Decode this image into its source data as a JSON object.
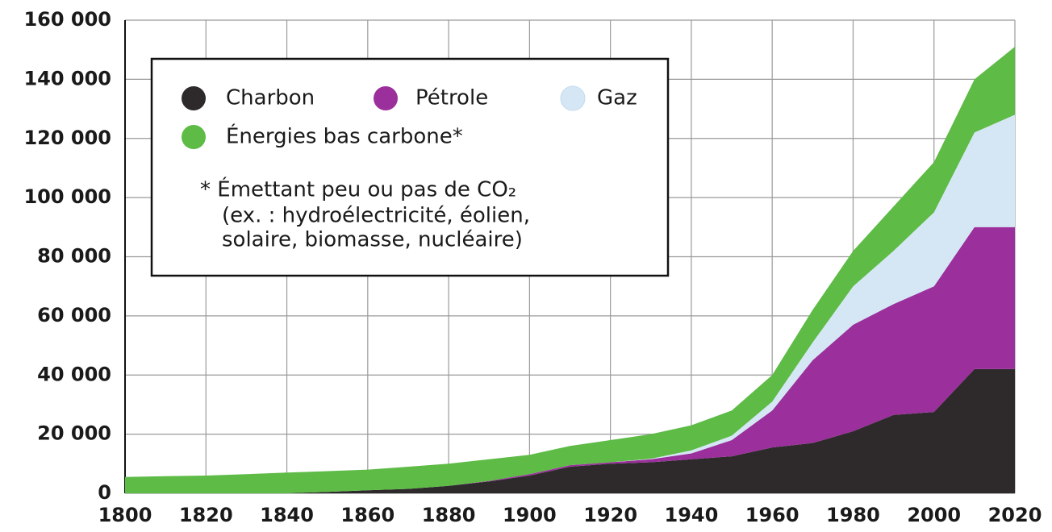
{
  "chart_data": {
    "type": "stacked_area",
    "x": [
      1800,
      1810,
      1820,
      1830,
      1840,
      1850,
      1860,
      1870,
      1880,
      1890,
      1900,
      1910,
      1920,
      1930,
      1940,
      1950,
      1960,
      1970,
      1980,
      1990,
      2000,
      2010,
      2020
    ],
    "series": [
      {
        "name": "Charbon",
        "color": "#2e2a2c",
        "values": [
          0,
          0,
          0,
          0,
          0,
          500,
          1000,
          1500,
          2500,
          4000,
          6000,
          9000,
          10000,
          10500,
          11500,
          12500,
          15500,
          17000,
          21000,
          26500,
          27500,
          42000,
          42000
        ]
      },
      {
        "name": "Pétrole",
        "color": "#9b2f9c",
        "values": [
          0,
          0,
          0,
          0,
          0,
          0,
          0,
          0,
          0,
          200,
          500,
          500,
          500,
          1000,
          2000,
          5500,
          12500,
          28000,
          36000,
          37500,
          42500,
          48000,
          48000
        ]
      },
      {
        "name": "Gaz",
        "color": "#d5e7f5",
        "values": [
          0,
          0,
          0,
          0,
          0,
          0,
          0,
          0,
          0,
          0,
          0,
          0,
          0,
          200,
          1000,
          1500,
          3000,
          6000,
          13000,
          18000,
          25000,
          32000,
          38000
        ]
      },
      {
        "name": "Énergies bas carbone*",
        "color": "#5dbb46",
        "values": [
          5500,
          5800,
          6000,
          6500,
          7000,
          7000,
          7000,
          7500,
          7500,
          7300,
          6500,
          6500,
          7500,
          8300,
          8500,
          8500,
          9000,
          11000,
          12000,
          15000,
          17000,
          18000,
          23000
        ]
      }
    ],
    "note": [
      "* Émettant peu ou pas de CO₂",
      "(ex. : hydroélectricité, éolien,",
      "solaire, biomasse, nucléaire)"
    ],
    "xlim": [
      1800,
      2020
    ],
    "xticks": [
      1800,
      1820,
      1840,
      1860,
      1880,
      1900,
      1920,
      1940,
      1960,
      1980,
      2000,
      2020
    ],
    "ylim": [
      0,
      160000
    ],
    "yticks": [
      {
        "value": 0,
        "label": "0"
      },
      {
        "value": 20000,
        "label": "20 000"
      },
      {
        "value": 40000,
        "label": "40 000"
      },
      {
        "value": 60000,
        "label": "60 000"
      },
      {
        "value": 80000,
        "label": "80 000"
      },
      {
        "value": 100000,
        "label": "100 000"
      },
      {
        "value": 120000,
        "label": "120 000"
      },
      {
        "value": 140000,
        "label": "140 000"
      },
      {
        "value": 160000,
        "label": "160 000"
      }
    ],
    "grid": true
  }
}
